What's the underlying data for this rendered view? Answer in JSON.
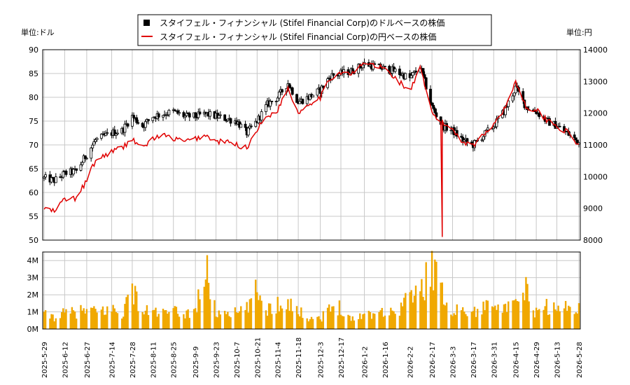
{
  "chart_data": [
    {
      "type": "candlestick",
      "legend_placement": "top-center",
      "series": [
        {
          "name": "スタイフェル・フィナンシャル (Stifel Financial Corp)のドルベースの株価",
          "color": "#000000"
        },
        {
          "name": "スタイフェル・フィナンシャル (Stifel Financial Corp)の円ベースの株価",
          "color": "#e00000"
        }
      ],
      "left_unit_label": "単位:ドル",
      "right_unit_label": "単位:円",
      "ylim_left": [
        50,
        90
      ],
      "ylim_right": [
        8000,
        14000
      ],
      "yticks_left": [
        "50",
        "55",
        "60",
        "65",
        "70",
        "75",
        "80",
        "85",
        "90"
      ],
      "yticks_right": [
        "8000",
        "9000",
        "10000",
        "11000",
        "12000",
        "13000",
        "14000"
      ],
      "grid": true,
      "x_ticks": [
        "2025-5-29",
        "2025-6-12",
        "2025-6-27",
        "2025-7-14",
        "2025-7-28",
        "2025-8-11",
        "2025-8-25",
        "2025-9-9",
        "2025-9-23",
        "2025-10-7",
        "2025-10-21",
        "2025-11-4",
        "2025-11-18",
        "2025-12-3",
        "2025-12-17",
        "2026-1-2",
        "2026-1-16",
        "2026-2-2",
        "2026-2-17",
        "2026-3-3",
        "2026-3-17",
        "2026-3-31",
        "2026-4-15",
        "2026-4-29",
        "2026-5-13",
        "2026-5-28"
      ],
      "usd_price_approx": [
        [
          "2025-5-29",
          63.0
        ],
        [
          "2025-6-5",
          62.5
        ],
        [
          "2025-6-12",
          64.0
        ],
        [
          "2025-6-20",
          64.5
        ],
        [
          "2025-6-27",
          68.0
        ],
        [
          "2025-7-3",
          71.0
        ],
        [
          "2025-7-14",
          72.5
        ],
        [
          "2025-7-21",
          73.0
        ],
        [
          "2025-7-28",
          76.0
        ],
        [
          "2025-8-4",
          74.0
        ],
        [
          "2025-8-11",
          76.0
        ],
        [
          "2025-8-18",
          76.5
        ],
        [
          "2025-8-25",
          77.0
        ],
        [
          "2025-9-2",
          76.0
        ],
        [
          "2025-9-9",
          76.0
        ],
        [
          "2025-9-16",
          76.5
        ],
        [
          "2025-9-23",
          76.0
        ],
        [
          "2025-9-30",
          75.5
        ],
        [
          "2025-10-7",
          75.0
        ],
        [
          "2025-10-14",
          72.5
        ],
        [
          "2025-10-21",
          75.0
        ],
        [
          "2025-10-28",
          78.5
        ],
        [
          "2025-11-4",
          80.0
        ],
        [
          "2025-11-11",
          83.0
        ],
        [
          "2025-11-18",
          79.0
        ],
        [
          "2025-11-25",
          80.0
        ],
        [
          "2025-12-3",
          81.5
        ],
        [
          "2025-12-10",
          84.5
        ],
        [
          "2025-12-17",
          85.0
        ],
        [
          "2025-12-24",
          85.5
        ],
        [
          "2026-1-2",
          87.0
        ],
        [
          "2026-1-9",
          86.5
        ],
        [
          "2026-1-16",
          86.0
        ],
        [
          "2026-1-23",
          85.5
        ],
        [
          "2026-2-2",
          84.0
        ],
        [
          "2026-2-9",
          86.5
        ],
        [
          "2026-2-17",
          78.0
        ],
        [
          "2026-2-24",
          74.0
        ],
        [
          "2026-3-3",
          73.0
        ],
        [
          "2026-3-10",
          71.0
        ],
        [
          "2026-3-17",
          70.0
        ],
        [
          "2026-3-24",
          72.0
        ],
        [
          "2026-3-31",
          74.0
        ],
        [
          "2026-4-7",
          77.0
        ],
        [
          "2026-4-15",
          82.0
        ],
        [
          "2026-4-22",
          78.0
        ],
        [
          "2026-4-29",
          77.0
        ],
        [
          "2026-5-6",
          75.0
        ],
        [
          "2026-5-13",
          74.0
        ],
        [
          "2026-5-20",
          72.5
        ],
        [
          "2026-5-28",
          70.5
        ]
      ],
      "jpy_price_approx": [
        [
          "2025-5-29",
          9000
        ],
        [
          "2025-6-5",
          8900
        ],
        [
          "2025-6-12",
          9300
        ],
        [
          "2025-6-20",
          9300
        ],
        [
          "2025-6-27",
          9900
        ],
        [
          "2025-7-3",
          10500
        ],
        [
          "2025-7-14",
          10800
        ],
        [
          "2025-7-21",
          10900
        ],
        [
          "2025-7-28",
          11200
        ],
        [
          "2025-8-4",
          10900
        ],
        [
          "2025-8-11",
          11200
        ],
        [
          "2025-8-18",
          11300
        ],
        [
          "2025-8-25",
          11200
        ],
        [
          "2025-9-2",
          11100
        ],
        [
          "2025-9-9",
          11200
        ],
        [
          "2025-9-16",
          11300
        ],
        [
          "2025-9-23",
          11100
        ],
        [
          "2025-9-30",
          11100
        ],
        [
          "2025-10-7",
          11000
        ],
        [
          "2025-10-14",
          10900
        ],
        [
          "2025-10-21",
          11500
        ],
        [
          "2025-10-28",
          11900
        ],
        [
          "2025-11-4",
          12100
        ],
        [
          "2025-11-11",
          12800
        ],
        [
          "2025-11-18",
          12000
        ],
        [
          "2025-11-25",
          12300
        ],
        [
          "2025-12-3",
          12500
        ],
        [
          "2025-12-10",
          13100
        ],
        [
          "2025-12-17",
          13300
        ],
        [
          "2025-12-24",
          13200
        ],
        [
          "2026-1-2",
          13600
        ],
        [
          "2026-1-9",
          13500
        ],
        [
          "2026-1-16",
          13400
        ],
        [
          "2026-1-23",
          13100
        ],
        [
          "2026-2-2",
          12700
        ],
        [
          "2026-2-9",
          13400
        ],
        [
          "2026-2-17",
          12000
        ],
        [
          "2026-2-24",
          11700
        ],
        [
          "2026-3-3",
          11500
        ],
        [
          "2026-3-10",
          11100
        ],
        [
          "2026-3-17",
          11000
        ],
        [
          "2026-3-24",
          11300
        ],
        [
          "2026-3-31",
          11700
        ],
        [
          "2026-4-7",
          12100
        ],
        [
          "2026-4-15",
          13000
        ],
        [
          "2026-4-22",
          12200
        ],
        [
          "2026-4-29",
          12100
        ],
        [
          "2026-5-6",
          11800
        ],
        [
          "2026-5-13",
          11600
        ],
        [
          "2026-5-20",
          11400
        ],
        [
          "2026-5-28",
          11000
        ]
      ],
      "jpy_spike": {
        "date": "2026-2-24",
        "low": 8100
      }
    },
    {
      "type": "bar",
      "color": "#f0a800",
      "ylim": [
        0,
        4.5
      ],
      "yticks": [
        "0M",
        "1M",
        "2M",
        "3M",
        "4M"
      ],
      "grid": true,
      "volume_millions_approx": [
        [
          "2025-5-29",
          0.9
        ],
        [
          "2025-6-5",
          0.8
        ],
        [
          "2025-6-12",
          1.0
        ],
        [
          "2025-6-20",
          1.1
        ],
        [
          "2025-6-27",
          1.2
        ],
        [
          "2025-7-3",
          1.1
        ],
        [
          "2025-7-14",
          1.3
        ],
        [
          "2025-7-21",
          1.0
        ],
        [
          "2025-7-28",
          2.6
        ],
        [
          "2025-8-4",
          1.1
        ],
        [
          "2025-8-11",
          1.2
        ],
        [
          "2025-8-18",
          1.0
        ],
        [
          "2025-8-25",
          1.1
        ],
        [
          "2025-9-2",
          1.0
        ],
        [
          "2025-9-9",
          1.2
        ],
        [
          "2025-9-16",
          3.9
        ],
        [
          "2025-9-23",
          1.0
        ],
        [
          "2025-9-30",
          1.2
        ],
        [
          "2025-10-7",
          1.0
        ],
        [
          "2025-10-14",
          1.3
        ],
        [
          "2025-10-21",
          2.5
        ],
        [
          "2025-10-28",
          1.3
        ],
        [
          "2025-11-4",
          1.6
        ],
        [
          "2025-11-11",
          1.9
        ],
        [
          "2025-11-18",
          1.1
        ],
        [
          "2025-11-25",
          0.8
        ],
        [
          "2025-12-3",
          0.7
        ],
        [
          "2025-12-10",
          1.3
        ],
        [
          "2025-12-17",
          1.5
        ],
        [
          "2025-12-24",
          0.6
        ],
        [
          "2026-1-2",
          1.0
        ],
        [
          "2026-1-9",
          1.1
        ],
        [
          "2026-1-16",
          1.2
        ],
        [
          "2026-1-23",
          1.0
        ],
        [
          "2026-2-2",
          2.3
        ],
        [
          "2026-2-9",
          2.2
        ],
        [
          "2026-2-17",
          4.4
        ],
        [
          "2026-2-24",
          2.2
        ],
        [
          "2026-3-3",
          1.3
        ],
        [
          "2026-3-10",
          1.2
        ],
        [
          "2026-3-17",
          1.1
        ],
        [
          "2026-3-24",
          1.3
        ],
        [
          "2026-3-31",
          2.3
        ],
        [
          "2026-4-7",
          1.2
        ],
        [
          "2026-4-15",
          1.5
        ],
        [
          "2026-4-22",
          2.5
        ],
        [
          "2026-4-29",
          1.0
        ],
        [
          "2026-5-6",
          1.5
        ],
        [
          "2026-5-13",
          1.2
        ],
        [
          "2026-5-20",
          1.4
        ],
        [
          "2026-5-28",
          1.6
        ]
      ]
    }
  ]
}
